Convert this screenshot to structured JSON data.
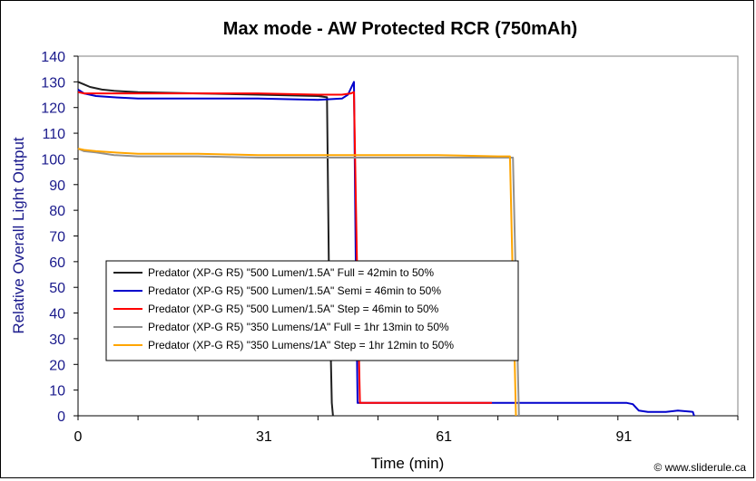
{
  "chart_data": {
    "type": "line",
    "title": "Max mode - AW Protected RCR (750mAh)",
    "xlabel": "Time (min)",
    "ylabel": "Relative Overall Light Output",
    "xlim": [
      0,
      110
    ],
    "ylim": [
      0,
      140
    ],
    "x_ticks": [
      0,
      31,
      61,
      91
    ],
    "y_ticks": [
      0,
      10,
      20,
      30,
      40,
      50,
      60,
      70,
      80,
      90,
      100,
      110,
      120,
      130,
      140
    ],
    "grid": false,
    "legend_position": "center-left",
    "credit": "© www.sliderule.ca",
    "series": [
      {
        "name": "Predator (XP-G R5) \"500 Lumen/1.5A\" Full =  42min to 50%",
        "color": "#202020",
        "x": [
          0,
          1,
          2,
          4,
          6,
          10,
          20,
          30,
          40,
          41.5,
          41.8,
          42.3,
          42.5
        ],
        "y": [
          130,
          129,
          128,
          127,
          126.5,
          126,
          125.5,
          125,
          124.5,
          124,
          60,
          5,
          0
        ]
      },
      {
        "name": "Predator (XP-G R5) \"500 Lumen/1.5A\" Semi = 46min to 50%",
        "color": "#0000cc",
        "x": [
          0,
          1,
          3,
          6,
          10,
          20,
          30,
          40,
          44,
          45,
          46,
          46.3,
          46.6,
          47,
          50,
          60,
          70,
          80,
          90,
          91.5,
          92.5,
          93.5,
          95,
          98,
          100,
          102.5,
          102.7
        ],
        "y": [
          127,
          125.5,
          124.5,
          124,
          123.5,
          123.5,
          123.5,
          123,
          123.5,
          125,
          130,
          60,
          5,
          5,
          5,
          5,
          5,
          5,
          5,
          5,
          4.5,
          2,
          1.5,
          1.5,
          2,
          1.5,
          0
        ]
      },
      {
        "name": "Predator (XP-G R5) \"500 Lumen/1.5A\" Step = 46min to 50%",
        "color": "#ff0000",
        "x": [
          0,
          1,
          3,
          6,
          10,
          20,
          30,
          40,
          44,
          45.5,
          46,
          46.5,
          47,
          50,
          60,
          69
        ],
        "y": [
          126,
          125.5,
          125.5,
          125.5,
          125.5,
          125.5,
          125.5,
          125,
          125,
          125.5,
          126,
          60,
          5,
          5,
          5,
          5
        ]
      },
      {
        "name": "Predator (XP-G R5) \"350 Lumens/1A\" Full = 1hr 13min to 50%",
        "color": "#909090",
        "x": [
          0,
          1,
          3,
          6,
          10,
          20,
          30,
          40,
          50,
          60,
          70,
          72.5,
          73,
          73.5
        ],
        "y": [
          104,
          103,
          102.5,
          101.5,
          101,
          101,
          100.5,
          100.5,
          100.5,
          100.5,
          100.5,
          100.5,
          50,
          0
        ]
      },
      {
        "name": "Predator (XP-G R5) \"350 Lumens/1A\" Step = 1hr 12min to 50%",
        "color": "#ffa500",
        "x": [
          0,
          1,
          3,
          6,
          10,
          20,
          30,
          40,
          50,
          60,
          70,
          72,
          72.5,
          73
        ],
        "y": [
          104,
          103.5,
          103,
          102.5,
          102,
          102,
          101.5,
          101.5,
          101.5,
          101.5,
          101,
          101,
          50,
          0
        ]
      }
    ]
  }
}
